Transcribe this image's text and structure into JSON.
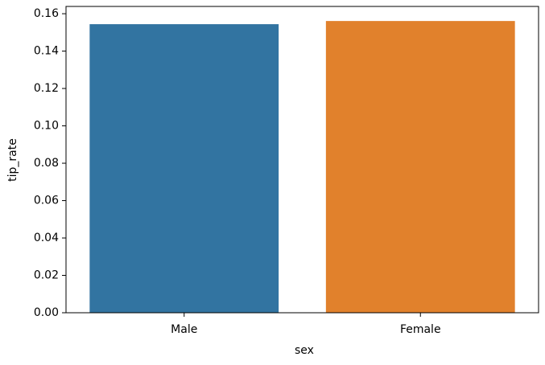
{
  "chart_data": {
    "type": "bar",
    "categories": [
      "Male",
      "Female"
    ],
    "values": [
      0.1544,
      0.1561
    ],
    "colors": [
      "#3274a1",
      "#e1812c"
    ],
    "xlabel": "sex",
    "ylabel": "tip_rate",
    "ylim": [
      0,
      0.1639
    ],
    "yticks": [
      {
        "value": 0,
        "label": "0.00"
      },
      {
        "value": 0.02,
        "label": "0.02"
      },
      {
        "value": 0.04,
        "label": "0.04"
      },
      {
        "value": 0.06,
        "label": "0.06"
      },
      {
        "value": 0.08,
        "label": "0.08"
      },
      {
        "value": 0.1,
        "label": "0.10"
      },
      {
        "value": 0.12,
        "label": "0.12"
      },
      {
        "value": 0.14,
        "label": "0.14"
      },
      {
        "value": 0.16,
        "label": "0.16"
      }
    ],
    "grid": false
  }
}
